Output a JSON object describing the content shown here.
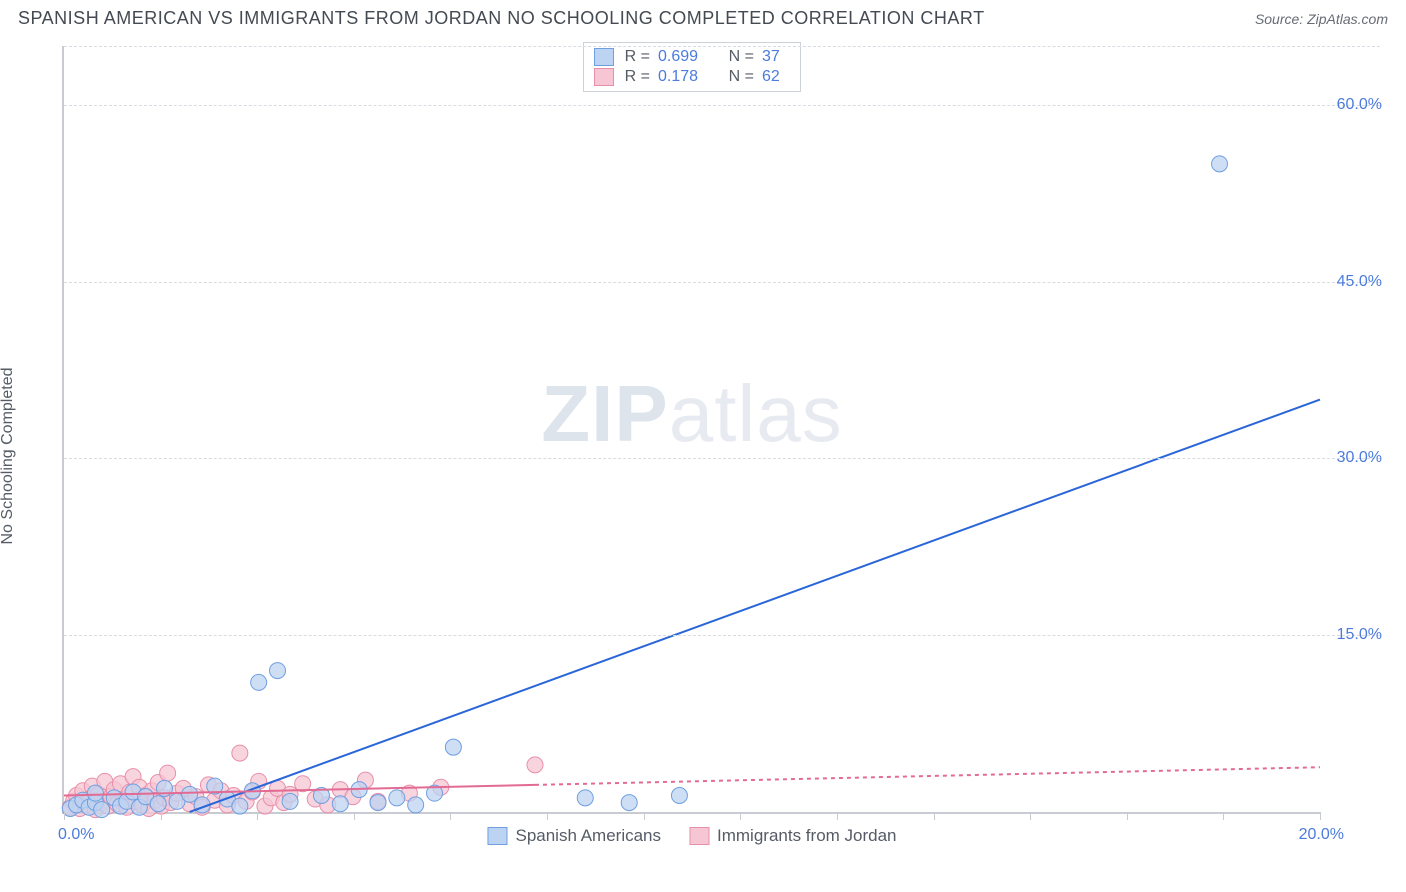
{
  "header": {
    "title": "SPANISH AMERICAN VS IMMIGRANTS FROM JORDAN NO SCHOOLING COMPLETED CORRELATION CHART",
    "source_prefix": "Source: ",
    "source": "ZipAtlas.com"
  },
  "chart": {
    "type": "scatter",
    "ylabel": "No Schooling Completed",
    "watermark_a": "ZIP",
    "watermark_b": "atlas",
    "background_color": "#ffffff",
    "grid_color": "#d8dce2",
    "axis_color": "#c8ccd2",
    "label_color": "#555c66",
    "value_color": "#4b7bdc",
    "xlim": [
      0,
      20
    ],
    "ylim": [
      0,
      65
    ],
    "xlim_labels": {
      "min": "0.0%",
      "max": "20.0%"
    },
    "yticks": [
      {
        "v": 15,
        "label": "15.0%"
      },
      {
        "v": 30,
        "label": "30.0%"
      },
      {
        "v": 45,
        "label": "45.0%"
      },
      {
        "v": 60,
        "label": "60.0%"
      }
    ],
    "xticks_count": 13,
    "series": [
      {
        "key": "spanish",
        "label": "Spanish Americans",
        "R": "0.699",
        "N": "37",
        "marker_fill": "#bcd3f2",
        "marker_stroke": "#6f9fe0",
        "marker_r": 8,
        "line_color": "#2a66d8",
        "line_width": 2,
        "line_dash": "none",
        "trend": {
          "x1": 2.0,
          "y1": 0.0,
          "x2": 20.0,
          "y2": 35.0,
          "solid_until_x": 20.0
        },
        "points": [
          [
            0.1,
            0.3
          ],
          [
            0.2,
            0.6
          ],
          [
            0.3,
            1.0
          ],
          [
            0.4,
            0.4
          ],
          [
            0.5,
            0.8
          ],
          [
            0.5,
            1.6
          ],
          [
            0.6,
            0.2
          ],
          [
            0.8,
            1.2
          ],
          [
            0.9,
            0.5
          ],
          [
            1.0,
            0.9
          ],
          [
            1.1,
            1.7
          ],
          [
            1.2,
            0.4
          ],
          [
            1.3,
            1.3
          ],
          [
            1.5,
            0.7
          ],
          [
            1.6,
            2.0
          ],
          [
            1.8,
            0.9
          ],
          [
            2.0,
            1.5
          ],
          [
            2.2,
            0.6
          ],
          [
            2.4,
            2.2
          ],
          [
            2.6,
            1.1
          ],
          [
            2.8,
            0.5
          ],
          [
            3.0,
            1.8
          ],
          [
            3.1,
            11.0
          ],
          [
            3.4,
            12.0
          ],
          [
            3.6,
            0.9
          ],
          [
            4.1,
            1.4
          ],
          [
            4.4,
            0.7
          ],
          [
            4.7,
            1.9
          ],
          [
            5.0,
            0.8
          ],
          [
            5.3,
            1.2
          ],
          [
            5.6,
            0.6
          ],
          [
            5.9,
            1.6
          ],
          [
            6.2,
            5.5
          ],
          [
            8.3,
            1.2
          ],
          [
            9.0,
            0.8
          ],
          [
            9.8,
            1.4
          ],
          [
            18.4,
            55.0
          ]
        ]
      },
      {
        "key": "jordan",
        "label": "Immigrants from Jordan",
        "R": "0.178",
        "N": "62",
        "marker_fill": "#f6c6d4",
        "marker_stroke": "#e88fa9",
        "marker_r": 8,
        "line_color": "#e26b94",
        "line_width": 2,
        "line_dash": "4 4",
        "trend": {
          "x1": 0.0,
          "y1": 1.4,
          "x2": 20.0,
          "y2": 3.8,
          "solid_until_x": 7.5
        },
        "points": [
          [
            0.1,
            0.4
          ],
          [
            0.15,
            0.9
          ],
          [
            0.2,
            1.4
          ],
          [
            0.25,
            0.3
          ],
          [
            0.3,
            1.8
          ],
          [
            0.35,
            0.6
          ],
          [
            0.4,
            1.1
          ],
          [
            0.45,
            2.2
          ],
          [
            0.5,
            0.2
          ],
          [
            0.55,
            1.5
          ],
          [
            0.6,
            0.8
          ],
          [
            0.65,
            2.6
          ],
          [
            0.7,
            0.5
          ],
          [
            0.75,
            1.3
          ],
          [
            0.8,
            1.9
          ],
          [
            0.85,
            0.7
          ],
          [
            0.9,
            2.4
          ],
          [
            0.95,
            1.0
          ],
          [
            1.0,
            0.4
          ],
          [
            1.05,
            1.7
          ],
          [
            1.1,
            3.0
          ],
          [
            1.15,
            0.9
          ],
          [
            1.2,
            2.1
          ],
          [
            1.25,
            0.6
          ],
          [
            1.3,
            1.4
          ],
          [
            1.35,
            0.3
          ],
          [
            1.4,
            1.8
          ],
          [
            1.45,
            1.0
          ],
          [
            1.5,
            2.5
          ],
          [
            1.55,
            0.5
          ],
          [
            1.6,
            1.2
          ],
          [
            1.65,
            3.3
          ],
          [
            1.7,
            0.8
          ],
          [
            1.8,
            1.6
          ],
          [
            1.9,
            2.0
          ],
          [
            2.0,
            0.7
          ],
          [
            2.1,
            1.3
          ],
          [
            2.2,
            0.4
          ],
          [
            2.3,
            2.3
          ],
          [
            2.4,
            1.0
          ],
          [
            2.5,
            1.8
          ],
          [
            2.6,
            0.6
          ],
          [
            2.7,
            1.4
          ],
          [
            2.8,
            5.0
          ],
          [
            2.9,
            0.9
          ],
          [
            3.0,
            1.7
          ],
          [
            3.1,
            2.6
          ],
          [
            3.2,
            0.5
          ],
          [
            3.3,
            1.2
          ],
          [
            3.4,
            2.0
          ],
          [
            3.5,
            0.8
          ],
          [
            3.6,
            1.5
          ],
          [
            3.8,
            2.4
          ],
          [
            4.0,
            1.1
          ],
          [
            4.2,
            0.6
          ],
          [
            4.4,
            1.9
          ],
          [
            4.6,
            1.3
          ],
          [
            4.8,
            2.7
          ],
          [
            5.0,
            0.9
          ],
          [
            5.5,
            1.6
          ],
          [
            6.0,
            2.1
          ],
          [
            7.5,
            4.0
          ]
        ]
      }
    ],
    "legend_top": {
      "r_label": "R =",
      "n_label": "N ="
    },
    "legend_bottom_order": [
      "spanish",
      "jordan"
    ]
  }
}
